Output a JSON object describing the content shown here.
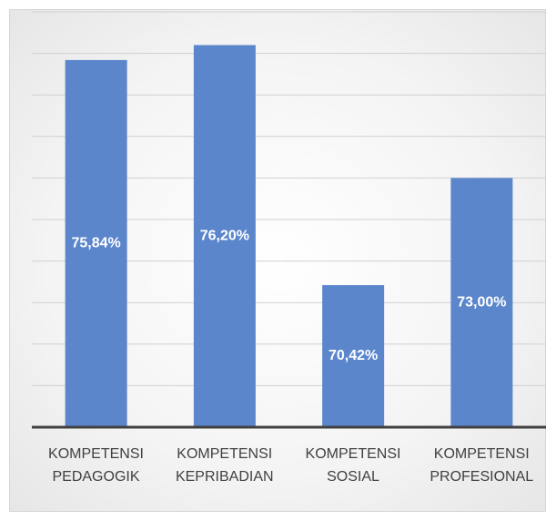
{
  "chart_data": {
    "type": "bar",
    "categories": [
      "KOMPETENSI PEDAGOGIK",
      "KOMPETENSI KEPRIBADIAN",
      "KOMPETENSI SOSIAL",
      "KOMPETENSI PROFESIONAL"
    ],
    "values": [
      75.84,
      76.2,
      70.42,
      73.0
    ],
    "value_labels": [
      "75,84%",
      "76,20%",
      "70,42%",
      "73,00%"
    ],
    "color": "#5b86cc",
    "ylim": [
      67,
      77
    ],
    "yticks": [
      67,
      68,
      69,
      70,
      71,
      72,
      73,
      74,
      75,
      76,
      77
    ],
    "grid": true
  }
}
